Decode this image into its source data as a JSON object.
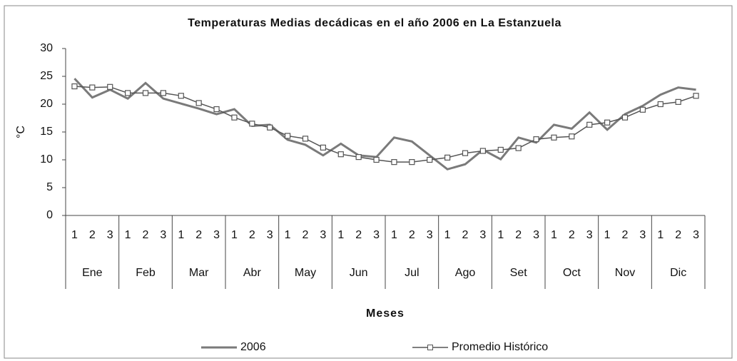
{
  "chart_data": {
    "type": "line",
    "title": "Temperaturas Medias decádicas en el año 2006 en La Estanzuela",
    "y_label": "°C",
    "x_label": "Meses",
    "categories": [
      "1",
      "2",
      "3",
      "1",
      "2",
      "3",
      "1",
      "2",
      "3",
      "1",
      "2",
      "3",
      "1",
      "2",
      "3",
      "1",
      "2",
      "3",
      "1",
      "2",
      "3",
      "1",
      "2",
      "3",
      "1",
      "2",
      "3",
      "1",
      "2",
      "3",
      "1",
      "2",
      "3",
      "1",
      "2",
      "3"
    ],
    "groups": [
      "Ene",
      "Feb",
      "Mar",
      "Abr",
      "May",
      "Jun",
      "Jul",
      "Ago",
      "Set",
      "Oct",
      "Nov",
      "Dic"
    ],
    "series": [
      {
        "name": "2006",
        "color": "#7a7a7a",
        "values": [
          24.6,
          21.2,
          22.6,
          21,
          23.8,
          21,
          20.1,
          19.2,
          18.2,
          19.1,
          16.1,
          16.3,
          13.6,
          12.7,
          10.8,
          12.9,
          10.8,
          10.5,
          14,
          13.3,
          10.8,
          8.3,
          9.2,
          11.8,
          10.1,
          14,
          13.1,
          16.3,
          15.6,
          18.5,
          15.4,
          18.2,
          19.7,
          21.7,
          23,
          22.6
        ]
      },
      {
        "name": "Promedio Histórico",
        "color": "#555555",
        "marker": "square",
        "values": [
          23.2,
          23,
          23.1,
          22,
          22,
          22,
          21.5,
          20.2,
          19.1,
          17.6,
          16.5,
          15.8,
          14.3,
          13.8,
          12.2,
          11,
          10.5,
          10,
          9.6,
          9.6,
          10,
          10.4,
          11.2,
          11.6,
          11.8,
          12.1,
          13.7,
          14,
          14.2,
          16.3,
          16.7,
          17.6,
          19,
          20,
          20.4,
          21.5
        ]
      }
    ],
    "ylim": [
      0,
      30
    ],
    "yticks": [
      0,
      5,
      10,
      15,
      20,
      25,
      30
    ],
    "grid": false,
    "legend": "bottom"
  }
}
